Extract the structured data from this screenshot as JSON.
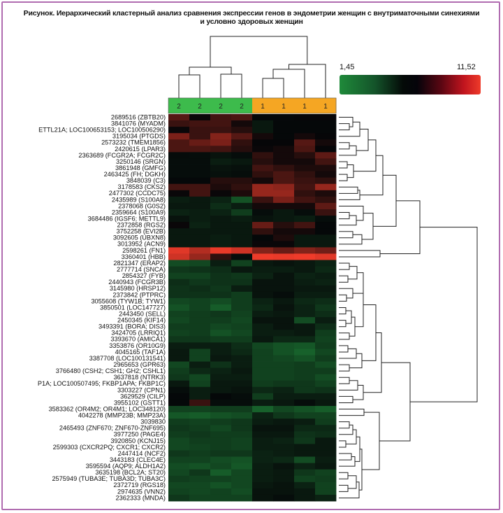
{
  "title_line1": "Рисунок. Иерархический кластерный анализ сравнения экспрессии генов в эндометрии женщин с внутриматочными синехиями",
  "title_line2": "и условно здоровых женщин",
  "chart_data": {
    "type": "heatmap",
    "title": "Рисунок. Иерархический кластерный анализ сравнения экспрессии генов в эндометрии женщин с внутриматочными синехиями и условно здоровых женщин",
    "color_scale": {
      "min": 1.45,
      "max": 11.52,
      "min_label": "1,45",
      "max_label": "11,52",
      "colors": [
        "#1f8a3a",
        "#050608",
        "#ef3b2a"
      ]
    },
    "columns": [
      {
        "group": "2",
        "color": "#3dbb4c"
      },
      {
        "group": "2",
        "color": "#3dbb4c"
      },
      {
        "group": "2",
        "color": "#3dbb4c"
      },
      {
        "group": "2",
        "color": "#3dbb4c"
      },
      {
        "group": "1",
        "color": "#f5a623"
      },
      {
        "group": "1",
        "color": "#f5a623"
      },
      {
        "group": "1",
        "color": "#f5a623"
      },
      {
        "group": "1",
        "color": "#f5a623"
      }
    ],
    "rows": [
      "2689516 (ZBTB20)",
      "3841076 (MYADM)",
      "ETTL21A; LOC100653153; LOC100506290)",
      "3195034 (PTGDS)",
      "2573232 (TMEM1856)",
      "2420615 (LPAR3)",
      "2363689 (FCGR2A; FCGR2C)",
      "3250146 (SRGN)",
      "3861948 (GMFG)",
      "2463425 (FH; DGKH)",
      "3848039 (C3)",
      "3178583 (CKS2)",
      "2477302 (CCDC75)",
      "2435989 (S100A8)",
      "2378068 (G0S2)",
      "2359664 (S100A9)",
      "3684486 (IGSF6; METTL9)",
      "2372858 (RGS2)",
      "3752258 (EVI2B)",
      "3092605 (UBXN8)",
      "3013952 (ACN9)",
      "2598261 (FN1)",
      "3360401 (HBB)",
      "2821347 (ERAP2)",
      "2777714 (SNCA)",
      "2854327 (FYB)",
      "2440943 (FCGR3B)",
      "3145980 (HRSP12)",
      "2373842 (PTPRC)",
      "3055608 (TYW1B; TYW1)",
      "3850501 (LOC147727)",
      "2443450 (SELL)",
      "2450345 (KIF14)",
      "3493391 (BORA; DIS3)",
      "3424705 (LRRIQ1)",
      "3393670 (AMICA1)",
      "3353876 (OR10G9)",
      "4045165 (TAF1A)",
      "3387708 (LOC100131541)",
      "2965653 (GPR63)",
      "3766480 (CSH2; CSH1; GH2; CSHL1)",
      "3637818 (NTRK3)",
      "P1A; LOC100507495; FKBP1APA; FKBP1C)",
      "3303227 (CPN1)",
      "3629529 (CILP)",
      "3955102 (GSTT1)",
      "3583362 (OR4M2; OR4M1; LOC348120)",
      "4042278 (MMP23B; MMP23A)",
      "3039830",
      "2465493 (ZNF670; ZNF670-ZNF695)",
      "3977250 (PAGE4)",
      "3920850 (KCNJ15)",
      "2599303 (CXCR2PQ; CXCR1; CXCR2)",
      "2447414 (NCF2)",
      "3443183 (CLEC4E)",
      "3595594 (AQP9; ALDH1A2)",
      "3635198 (BCL2A; ST20)",
      "2575949 (TUBA3E; TUBA3D; TUBA3C)",
      "2372719 (RGS18)",
      "2974635 (VNN2)",
      "2362333 (MNDA)"
    ],
    "values": [
      [
        8.2,
        6.6,
        7.8,
        8.0,
        6.4,
        6.4,
        6.5,
        6.5
      ],
      [
        7.6,
        7.8,
        7.8,
        6.8,
        5.8,
        6.4,
        6.4,
        6.4
      ],
      [
        6.6,
        7.6,
        7.6,
        7.2,
        5.8,
        6.4,
        6.4,
        6.4
      ],
      [
        9.0,
        7.6,
        9.2,
        8.2,
        6.8,
        6.4,
        6.8,
        6.5
      ],
      [
        8.0,
        8.6,
        9.0,
        7.4,
        6.5,
        6.5,
        8.2,
        6.8
      ],
      [
        8.0,
        8.0,
        7.8,
        7.2,
        6.6,
        6.8,
        8.0,
        6.5
      ],
      [
        6.3,
        6.2,
        6.0,
        6.2,
        7.4,
        6.8,
        7.2,
        8.4
      ],
      [
        6.2,
        6.2,
        5.6,
        5.8,
        7.2,
        6.8,
        6.8,
        7.8
      ],
      [
        6.2,
        6.2,
        6.0,
        6.1,
        7.8,
        7.4,
        7.0,
        7.0
      ],
      [
        6.2,
        6.2,
        6.1,
        6.2,
        7.4,
        8.0,
        7.4,
        6.8
      ],
      [
        6.4,
        6.4,
        7.2,
        7.2,
        6.8,
        8.0,
        7.6,
        7.4
      ],
      [
        7.8,
        7.8,
        7.0,
        7.4,
        9.6,
        9.4,
        7.8,
        9.6
      ],
      [
        6.6,
        7.8,
        6.6,
        7.0,
        9.6,
        9.6,
        7.4,
        7.0
      ],
      [
        5.6,
        5.8,
        5.4,
        3.6,
        7.6,
        9.0,
        7.8,
        7.4
      ],
      [
        5.8,
        5.8,
        5.0,
        5.6,
        6.8,
        6.8,
        6.8,
        8.4
      ],
      [
        5.4,
        5.6,
        5.4,
        4.4,
        6.2,
        5.8,
        6.2,
        7.6
      ],
      [
        6.0,
        5.6,
        5.8,
        5.6,
        6.0,
        5.8,
        5.6,
        6.2
      ],
      [
        6.6,
        5.4,
        5.8,
        5.8,
        8.6,
        7.2,
        7.8,
        6.4
      ],
      [
        5.8,
        5.8,
        5.8,
        5.8,
        7.4,
        6.8,
        6.8,
        6.4
      ],
      [
        5.8,
        5.8,
        5.6,
        5.8,
        6.4,
        7.0,
        5.8,
        5.8
      ],
      [
        5.8,
        5.8,
        5.6,
        5.8,
        6.6,
        6.6,
        5.8,
        5.8
      ],
      [
        11.2,
        10.2,
        11.4,
        10.8,
        9.2,
        8.6,
        9.2,
        8.8
      ],
      [
        10.8,
        9.6,
        7.4,
        6.2,
        11.5,
        11.4,
        11.6,
        11.2
      ],
      [
        3.8,
        4.0,
        5.6,
        4.2,
        5.8,
        6.0,
        5.8,
        5.4
      ],
      [
        4.6,
        4.8,
        5.0,
        5.8,
        5.6,
        5.6,
        5.8,
        5.2
      ],
      [
        4.2,
        4.2,
        4.8,
        4.6,
        5.4,
        6.0,
        5.4,
        5.6
      ],
      [
        5.0,
        4.6,
        4.8,
        4.8,
        6.0,
        6.0,
        5.6,
        5.4
      ],
      [
        4.8,
        5.0,
        4.6,
        5.6,
        6.0,
        6.0,
        5.8,
        5.8
      ],
      [
        4.8,
        4.8,
        4.8,
        4.4,
        6.0,
        6.2,
        5.6,
        5.6
      ],
      [
        4.0,
        4.2,
        3.8,
        4.4,
        5.4,
        5.8,
        5.2,
        5.0
      ],
      [
        3.6,
        4.2,
        3.2,
        4.4,
        5.2,
        6.0,
        5.4,
        4.6
      ],
      [
        4.2,
        4.4,
        4.6,
        4.2,
        5.6,
        5.8,
        5.4,
        5.0
      ],
      [
        4.0,
        4.4,
        4.4,
        4.0,
        6.0,
        6.0,
        3.8,
        5.6
      ],
      [
        4.4,
        4.4,
        4.0,
        4.2,
        5.6,
        6.0,
        5.8,
        5.0
      ],
      [
        4.2,
        4.4,
        3.6,
        4.0,
        5.6,
        5.6,
        5.8,
        4.4
      ],
      [
        4.6,
        4.6,
        4.4,
        4.4,
        5.8,
        5.2,
        5.2,
        4.2
      ],
      [
        5.6,
        5.6,
        5.6,
        5.0,
        4.0,
        3.6,
        3.4,
        4.4
      ],
      [
        5.8,
        4.2,
        5.6,
        5.2,
        4.2,
        3.6,
        3.0,
        4.0
      ],
      [
        5.8,
        4.2,
        5.8,
        5.6,
        4.2,
        4.0,
        3.6,
        4.4
      ],
      [
        4.0,
        5.6,
        4.8,
        5.6,
        4.2,
        4.2,
        4.4,
        3.8
      ],
      [
        4.4,
        5.2,
        5.4,
        5.8,
        4.2,
        4.2,
        4.4,
        4.4
      ],
      [
        4.6,
        4.0,
        5.6,
        5.6,
        4.2,
        4.2,
        4.4,
        3.8
      ],
      [
        5.8,
        4.2,
        5.8,
        5.8,
        4.4,
        4.6,
        4.6,
        4.2
      ],
      [
        6.2,
        5.6,
        5.8,
        6.0,
        5.2,
        5.4,
        4.6,
        4.8
      ],
      [
        6.4,
        5.6,
        6.4,
        6.2,
        4.4,
        5.6,
        5.6,
        5.6
      ],
      [
        6.4,
        7.6,
        6.2,
        6.2,
        5.6,
        5.8,
        6.2,
        5.8
      ],
      [
        4.2,
        4.2,
        4.4,
        4.4,
        3.0,
        4.0,
        3.6,
        3.2
      ],
      [
        3.4,
        3.2,
        3.6,
        3.8,
        5.4,
        4.6,
        4.2,
        4.2
      ],
      [
        4.4,
        4.2,
        4.4,
        4.6,
        5.6,
        5.8,
        5.6,
        4.4
      ],
      [
        4.6,
        4.4,
        4.0,
        4.6,
        6.0,
        6.0,
        5.2,
        5.2
      ],
      [
        4.4,
        4.6,
        4.4,
        4.4,
        5.8,
        5.8,
        4.8,
        5.0
      ],
      [
        4.0,
        4.4,
        4.4,
        4.2,
        5.6,
        5.4,
        4.6,
        5.8
      ],
      [
        4.0,
        4.2,
        4.4,
        4.2,
        5.6,
        5.6,
        5.8,
        5.8
      ],
      [
        4.6,
        4.4,
        4.6,
        4.6,
        5.4,
        5.6,
        5.8,
        5.8
      ],
      [
        4.2,
        4.2,
        3.8,
        3.6,
        5.4,
        5.2,
        3.8,
        5.6
      ],
      [
        3.8,
        3.6,
        4.0,
        3.4,
        5.6,
        6.0,
        5.4,
        5.8
      ],
      [
        4.0,
        4.6,
        3.2,
        4.0,
        5.6,
        5.8,
        4.6,
        4.2
      ],
      [
        4.4,
        4.2,
        4.2,
        4.0,
        5.6,
        5.8,
        4.2,
        4.4
      ],
      [
        4.0,
        4.0,
        3.6,
        4.0,
        5.8,
        6.0,
        5.4,
        4.2
      ],
      [
        4.2,
        4.0,
        4.2,
        3.8,
        6.0,
        6.0,
        5.8,
        4.2
      ],
      [
        4.6,
        4.2,
        4.2,
        4.2,
        6.0,
        6.2,
        5.8,
        5.4
      ]
    ]
  }
}
